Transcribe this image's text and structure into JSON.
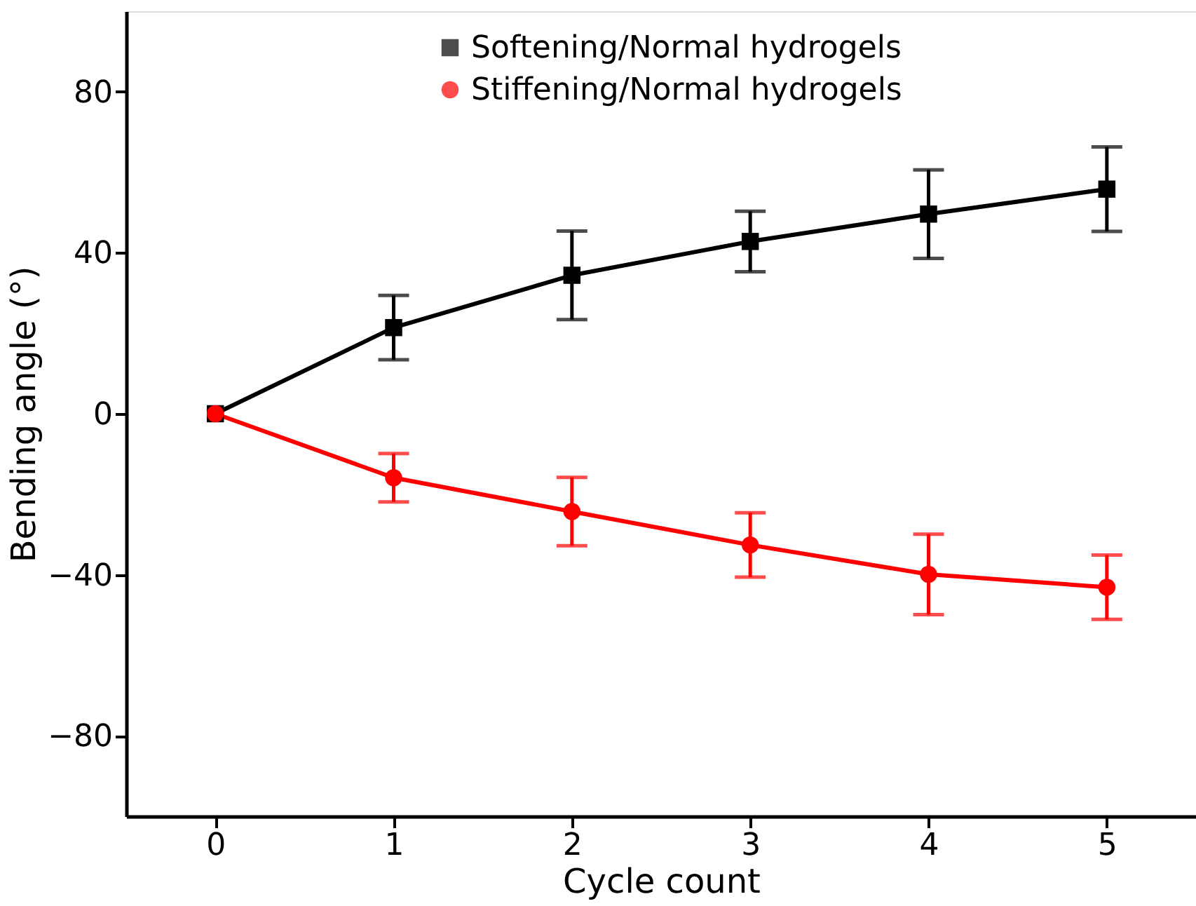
{
  "chart_data": {
    "type": "line",
    "xlabel": "Cycle count",
    "ylabel": "Bending angle (°)",
    "x": [
      0,
      1,
      2,
      3,
      4,
      5
    ],
    "xlim": [
      -0.5,
      5.5
    ],
    "xticks": [
      0,
      1,
      2,
      3,
      4,
      5
    ],
    "ylim": [
      -100,
      100
    ],
    "yticks": [
      -80,
      -40,
      0,
      40,
      80
    ],
    "grid": false,
    "legend": "top",
    "line_style": "solid",
    "series": [
      {
        "name": "Softening/Normal hydrogels",
        "color": "#000000",
        "marker": "square",
        "values": [
          0,
          21.4,
          34.4,
          42.8,
          49.6,
          55.8
        ],
        "errors": [
          null,
          8,
          11,
          7.5,
          11,
          10.5
        ]
      },
      {
        "name": "Stiffening/Normal hydrogels",
        "color": "#ff0000",
        "marker": "circle",
        "values": [
          0,
          -15.9,
          -24.3,
          -32.6,
          -39.9,
          -43.1
        ],
        "errors": [
          null,
          6,
          8.5,
          8,
          10,
          8
        ]
      }
    ]
  }
}
